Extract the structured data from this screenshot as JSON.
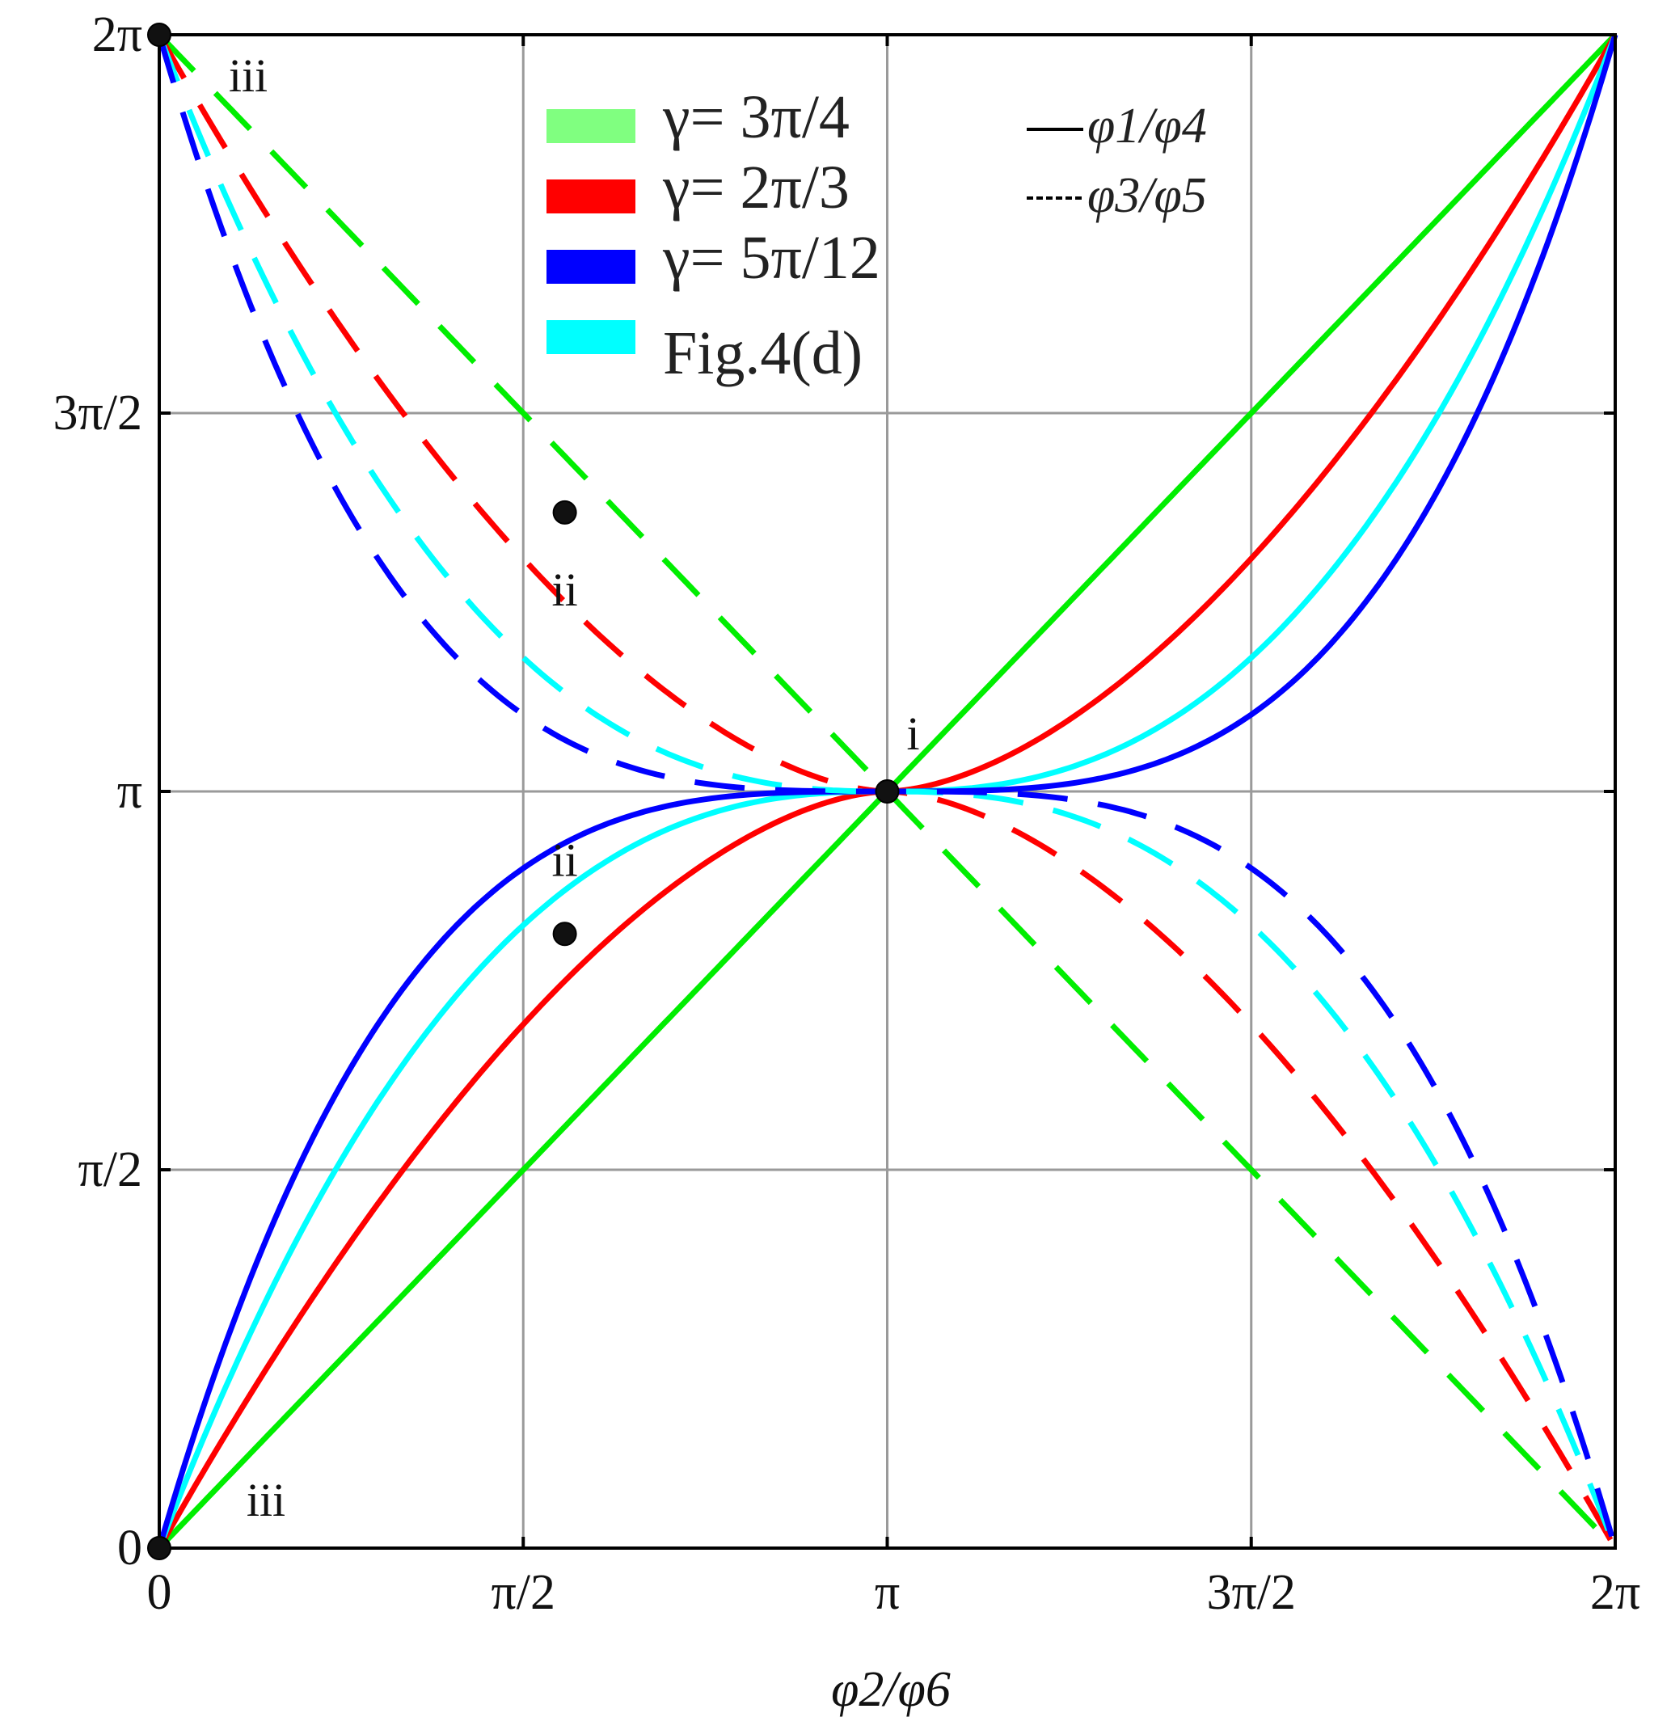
{
  "chart_data": {
    "type": "line",
    "xlabel": "φ2/φ6",
    "ylabel": "",
    "xlim": [
      0,
      6.2832
    ],
    "ylim": [
      0,
      6.2832
    ],
    "grid": true,
    "x_ticks": [
      {
        "value": 0,
        "label": "0"
      },
      {
        "value": 1.5708,
        "label": "π/2"
      },
      {
        "value": 3.1416,
        "label": "π"
      },
      {
        "value": 4.7124,
        "label": "3π/2"
      },
      {
        "value": 6.2832,
        "label": "2π"
      }
    ],
    "y_ticks": [
      {
        "value": 0,
        "label": "0"
      },
      {
        "value": 1.5708,
        "label": "π/2"
      },
      {
        "value": 3.1416,
        "label": "π"
      },
      {
        "value": 4.7124,
        "label": "3π/2"
      },
      {
        "value": 6.2832,
        "label": "2π"
      }
    ],
    "legend": {
      "placement": "top-center",
      "entries": [
        {
          "label": "γ= 3π/4",
          "color": "#80ff80"
        },
        {
          "label": "γ= 2π/3",
          "color": "#ff0000"
        },
        {
          "label": "γ= 5π/12",
          "color": "#0000ff"
        },
        {
          "label": "Fig.4(d)",
          "color": "#00ffff"
        }
      ],
      "styles": [
        {
          "label": "φ1/φ4",
          "dash": "solid"
        },
        {
          "label": "φ3/φ5",
          "dash": "dashed"
        }
      ]
    },
    "series": [
      {
        "name": "γ= 3π/4",
        "color": "#00ee00",
        "shape_k": 1.0,
        "dash": "solid",
        "x": [
          0,
          0.785,
          1.571,
          2.356,
          3.142,
          3.927,
          4.712,
          5.498,
          6.283
        ],
        "y": [
          0,
          0.91,
          1.78,
          2.53,
          3.142,
          3.75,
          4.5,
          5.37,
          6.283
        ]
      },
      {
        "name": "γ= 2π/3",
        "color": "#ff0000",
        "shape_k": 1.7,
        "dash": "solid",
        "x": [
          0,
          0.785,
          1.571,
          2.356,
          3.142,
          3.927,
          4.712,
          5.498,
          6.283
        ],
        "y": [
          0,
          1.31,
          2.16,
          2.72,
          3.142,
          3.56,
          4.12,
          4.97,
          6.283
        ]
      },
      {
        "name": "Fig.4(d)",
        "color": "#00ffff",
        "shape_k": 2.5,
        "dash": "solid",
        "x": [
          0,
          0.785,
          1.571,
          2.356,
          3.142,
          3.927,
          4.712,
          5.498,
          6.283
        ],
        "y": [
          0,
          1.65,
          2.38,
          2.85,
          3.142,
          3.43,
          3.9,
          4.63,
          6.283
        ]
      },
      {
        "name": "γ= 5π/12",
        "color": "#0000ff",
        "shape_k": 3.3,
        "dash": "solid",
        "x": [
          0,
          0.785,
          1.571,
          2.356,
          3.142,
          3.927,
          4.712,
          5.498,
          6.283
        ],
        "y": [
          0,
          1.92,
          2.51,
          2.91,
          3.142,
          3.37,
          3.77,
          4.36,
          6.283
        ]
      },
      {
        "name": "γ= 3π/4",
        "color": "#00ee00",
        "shape_k": 1.0,
        "dash": "dashed",
        "x": [
          0,
          0.785,
          1.571,
          2.356,
          3.142,
          3.927,
          4.712,
          5.498,
          6.283
        ],
        "y": [
          6.283,
          5.37,
          4.5,
          3.75,
          3.142,
          2.53,
          1.78,
          0.91,
          0
        ]
      },
      {
        "name": "γ= 2π/3",
        "color": "#ff0000",
        "shape_k": 1.7,
        "dash": "dashed",
        "x": [
          0,
          0.785,
          1.571,
          2.356,
          3.142,
          3.927,
          4.712,
          5.498,
          6.283
        ],
        "y": [
          6.283,
          4.97,
          4.12,
          3.56,
          3.142,
          2.72,
          2.16,
          1.31,
          0
        ]
      },
      {
        "name": "Fig.4(d)",
        "color": "#00ffff",
        "shape_k": 2.5,
        "dash": "dashed",
        "x": [
          0,
          0.785,
          1.571,
          2.356,
          3.142,
          3.927,
          4.712,
          5.498,
          6.283
        ],
        "y": [
          6.283,
          4.63,
          3.9,
          3.43,
          3.142,
          2.85,
          2.38,
          1.65,
          0
        ]
      },
      {
        "name": "γ= 5π/12",
        "color": "#0000ff",
        "shape_k": 3.3,
        "dash": "dashed",
        "x": [
          0,
          0.785,
          1.571,
          2.356,
          3.142,
          3.927,
          4.712,
          5.498,
          6.283
        ],
        "y": [
          6.283,
          4.36,
          3.77,
          3.37,
          3.142,
          2.91,
          2.51,
          1.92,
          0
        ]
      }
    ],
    "markers": [
      {
        "label": "i",
        "x": 3.1416,
        "y": 3.1416
      },
      {
        "label": "ii",
        "x": 1.75,
        "y": 4.3
      },
      {
        "label": "ii",
        "x": 1.75,
        "y": 2.55
      },
      {
        "label": "iii",
        "x": 0,
        "y": 6.2832
      },
      {
        "label": "iii",
        "x": 0,
        "y": 0
      }
    ]
  }
}
